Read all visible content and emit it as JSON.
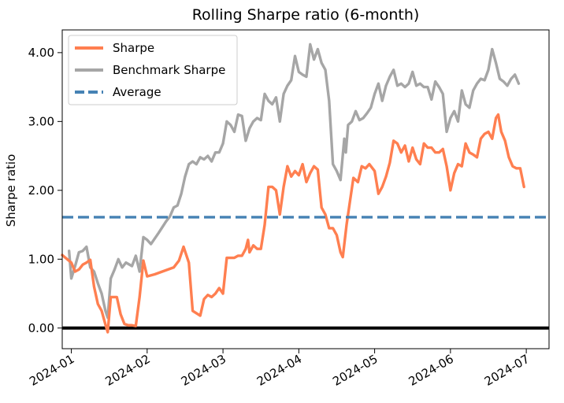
{
  "chart_data": {
    "type": "line",
    "title": "Rolling Sharpe ratio (6-month)",
    "xlabel": "",
    "ylabel": "Sharpe ratio",
    "x_ticks": [
      "2024-01",
      "2024-02",
      "2024-03",
      "2024-04",
      "2024-05",
      "2024-06",
      "2024-07"
    ],
    "y_ticks": [
      "0.00",
      "1.00",
      "2.00",
      "3.00",
      "4.00"
    ],
    "y_tick_values": [
      0,
      1,
      2,
      3,
      4
    ],
    "ylim": [
      -0.3,
      4.33
    ],
    "xlim": [
      -0.12,
      6.3
    ],
    "legend_position": "top-left",
    "series": [
      {
        "name": "Sharpe",
        "color": "#ff7f50",
        "points": [
          [
            -0.12,
            1.06
          ],
          [
            0.0,
            0.95
          ],
          [
            0.05,
            0.82
          ],
          [
            0.1,
            0.85
          ],
          [
            0.15,
            0.92
          ],
          [
            0.2,
            0.95
          ],
          [
            0.25,
            0.99
          ],
          [
            0.3,
            0.6
          ],
          [
            0.35,
            0.35
          ],
          [
            0.4,
            0.25
          ],
          [
            0.45,
            0.05
          ],
          [
            0.48,
            -0.06
          ],
          [
            0.52,
            0.45
          ],
          [
            0.6,
            0.45
          ],
          [
            0.65,
            0.2
          ],
          [
            0.7,
            0.06
          ],
          [
            0.75,
            0.04
          ],
          [
            0.8,
            0.04
          ],
          [
            0.85,
            0.03
          ],
          [
            0.9,
            0.45
          ],
          [
            0.95,
            0.98
          ],
          [
            1.0,
            0.75
          ],
          [
            1.1,
            0.78
          ],
          [
            1.2,
            0.82
          ],
          [
            1.3,
            0.86
          ],
          [
            1.35,
            0.88
          ],
          [
            1.42,
            0.98
          ],
          [
            1.48,
            1.18
          ],
          [
            1.55,
            0.95
          ],
          [
            1.6,
            0.25
          ],
          [
            1.7,
            0.18
          ],
          [
            1.75,
            0.42
          ],
          [
            1.8,
            0.48
          ],
          [
            1.85,
            0.45
          ],
          [
            1.9,
            0.5
          ],
          [
            1.95,
            0.58
          ],
          [
            2.0,
            0.5
          ],
          [
            2.05,
            1.02
          ],
          [
            2.15,
            1.02
          ],
          [
            2.2,
            1.05
          ],
          [
            2.25,
            1.05
          ],
          [
            2.3,
            1.15
          ],
          [
            2.33,
            1.28
          ],
          [
            2.35,
            1.1
          ],
          [
            2.4,
            1.2
          ],
          [
            2.45,
            1.15
          ],
          [
            2.5,
            1.15
          ],
          [
            2.55,
            1.5
          ],
          [
            2.6,
            2.05
          ],
          [
            2.65,
            2.05
          ],
          [
            2.7,
            2.0
          ],
          [
            2.75,
            1.65
          ],
          [
            2.8,
            2.05
          ],
          [
            2.85,
            2.35
          ],
          [
            2.9,
            2.2
          ],
          [
            2.95,
            2.28
          ],
          [
            3.0,
            2.22
          ],
          [
            3.05,
            2.38
          ],
          [
            3.1,
            2.12
          ],
          [
            3.15,
            2.25
          ],
          [
            3.2,
            2.35
          ],
          [
            3.25,
            2.3
          ],
          [
            3.3,
            1.75
          ],
          [
            3.35,
            1.65
          ],
          [
            3.4,
            1.45
          ],
          [
            3.45,
            1.45
          ],
          [
            3.5,
            1.35
          ],
          [
            3.55,
            1.1
          ],
          [
            3.58,
            1.03
          ],
          [
            3.63,
            1.5
          ],
          [
            3.68,
            1.88
          ],
          [
            3.72,
            2.18
          ],
          [
            3.78,
            2.12
          ],
          [
            3.83,
            2.35
          ],
          [
            3.88,
            2.32
          ],
          [
            3.93,
            2.38
          ],
          [
            4.0,
            2.28
          ],
          [
            4.05,
            1.95
          ],
          [
            4.1,
            2.05
          ],
          [
            4.15,
            2.2
          ],
          [
            4.2,
            2.4
          ],
          [
            4.25,
            2.72
          ],
          [
            4.3,
            2.68
          ],
          [
            4.35,
            2.55
          ],
          [
            4.4,
            2.65
          ],
          [
            4.45,
            2.42
          ],
          [
            4.5,
            2.62
          ],
          [
            4.55,
            2.45
          ],
          [
            4.6,
            2.38
          ],
          [
            4.65,
            2.68
          ],
          [
            4.7,
            2.62
          ],
          [
            4.75,
            2.62
          ],
          [
            4.8,
            2.55
          ],
          [
            4.85,
            2.55
          ],
          [
            4.9,
            2.6
          ],
          [
            4.95,
            2.35
          ],
          [
            5.0,
            2.0
          ],
          [
            5.05,
            2.25
          ],
          [
            5.1,
            2.38
          ],
          [
            5.15,
            2.35
          ],
          [
            5.2,
            2.68
          ],
          [
            5.25,
            2.55
          ],
          [
            5.3,
            2.52
          ],
          [
            5.35,
            2.48
          ],
          [
            5.4,
            2.75
          ],
          [
            5.45,
            2.82
          ],
          [
            5.5,
            2.85
          ],
          [
            5.55,
            2.75
          ],
          [
            5.6,
            3.05
          ],
          [
            5.63,
            3.1
          ],
          [
            5.67,
            2.85
          ],
          [
            5.72,
            2.72
          ],
          [
            5.77,
            2.48
          ],
          [
            5.82,
            2.35
          ],
          [
            5.87,
            2.32
          ],
          [
            5.92,
            2.32
          ],
          [
            5.97,
            2.05
          ]
        ]
      },
      {
        "name": "Benchmark Sharpe",
        "color": "#a6a6a6",
        "points": [
          [
            -0.03,
            1.12
          ],
          [
            0.0,
            0.72
          ],
          [
            0.05,
            0.9
          ],
          [
            0.1,
            1.1
          ],
          [
            0.15,
            1.12
          ],
          [
            0.2,
            1.18
          ],
          [
            0.25,
            0.88
          ],
          [
            0.3,
            0.82
          ],
          [
            0.35,
            0.65
          ],
          [
            0.4,
            0.5
          ],
          [
            0.45,
            0.25
          ],
          [
            0.48,
            0.15
          ],
          [
            0.52,
            0.72
          ],
          [
            0.57,
            0.85
          ],
          [
            0.62,
            1.0
          ],
          [
            0.67,
            0.88
          ],
          [
            0.72,
            0.95
          ],
          [
            0.8,
            0.9
          ],
          [
            0.85,
            1.05
          ],
          [
            0.9,
            0.82
          ],
          [
            0.95,
            1.32
          ],
          [
            1.0,
            1.28
          ],
          [
            1.05,
            1.22
          ],
          [
            1.15,
            1.38
          ],
          [
            1.25,
            1.55
          ],
          [
            1.3,
            1.62
          ],
          [
            1.35,
            1.75
          ],
          [
            1.4,
            1.78
          ],
          [
            1.45,
            1.95
          ],
          [
            1.5,
            2.2
          ],
          [
            1.55,
            2.38
          ],
          [
            1.6,
            2.42
          ],
          [
            1.65,
            2.38
          ],
          [
            1.7,
            2.48
          ],
          [
            1.75,
            2.45
          ],
          [
            1.8,
            2.5
          ],
          [
            1.85,
            2.42
          ],
          [
            1.9,
            2.55
          ],
          [
            1.95,
            2.55
          ],
          [
            2.0,
            2.68
          ],
          [
            2.05,
            3.0
          ],
          [
            2.1,
            2.95
          ],
          [
            2.15,
            2.85
          ],
          [
            2.2,
            3.1
          ],
          [
            2.25,
            3.08
          ],
          [
            2.3,
            2.72
          ],
          [
            2.35,
            2.9
          ],
          [
            2.4,
            3.0
          ],
          [
            2.45,
            3.05
          ],
          [
            2.5,
            3.02
          ],
          [
            2.55,
            3.4
          ],
          [
            2.6,
            3.3
          ],
          [
            2.65,
            3.25
          ],
          [
            2.7,
            3.35
          ],
          [
            2.75,
            3.0
          ],
          [
            2.8,
            3.4
          ],
          [
            2.85,
            3.52
          ],
          [
            2.9,
            3.6
          ],
          [
            2.95,
            3.95
          ],
          [
            3.0,
            3.72
          ],
          [
            3.05,
            3.68
          ],
          [
            3.1,
            3.65
          ],
          [
            3.15,
            4.12
          ],
          [
            3.2,
            3.9
          ],
          [
            3.25,
            4.05
          ],
          [
            3.3,
            3.85
          ],
          [
            3.35,
            3.75
          ],
          [
            3.4,
            3.3
          ],
          [
            3.45,
            2.38
          ],
          [
            3.5,
            2.28
          ],
          [
            3.55,
            2.15
          ],
          [
            3.6,
            2.75
          ],
          [
            3.62,
            2.55
          ],
          [
            3.65,
            2.95
          ],
          [
            3.7,
            3.0
          ],
          [
            3.75,
            3.15
          ],
          [
            3.8,
            3.02
          ],
          [
            3.85,
            3.05
          ],
          [
            3.9,
            3.12
          ],
          [
            3.95,
            3.2
          ],
          [
            4.0,
            3.4
          ],
          [
            4.05,
            3.55
          ],
          [
            4.1,
            3.3
          ],
          [
            4.15,
            3.52
          ],
          [
            4.2,
            3.65
          ],
          [
            4.25,
            3.75
          ],
          [
            4.3,
            3.52
          ],
          [
            4.35,
            3.55
          ],
          [
            4.4,
            3.5
          ],
          [
            4.45,
            3.55
          ],
          [
            4.5,
            3.72
          ],
          [
            4.55,
            3.52
          ],
          [
            4.6,
            3.55
          ],
          [
            4.65,
            3.5
          ],
          [
            4.7,
            3.5
          ],
          [
            4.75,
            3.32
          ],
          [
            4.8,
            3.58
          ],
          [
            4.85,
            3.5
          ],
          [
            4.9,
            3.4
          ],
          [
            4.95,
            2.85
          ],
          [
            5.0,
            3.05
          ],
          [
            5.05,
            3.15
          ],
          [
            5.1,
            3.0
          ],
          [
            5.15,
            3.45
          ],
          [
            5.2,
            3.25
          ],
          [
            5.25,
            3.2
          ],
          [
            5.3,
            3.45
          ],
          [
            5.35,
            3.55
          ],
          [
            5.4,
            3.62
          ],
          [
            5.45,
            3.6
          ],
          [
            5.5,
            3.75
          ],
          [
            5.55,
            4.05
          ],
          [
            5.6,
            3.85
          ],
          [
            5.65,
            3.62
          ],
          [
            5.7,
            3.58
          ],
          [
            5.75,
            3.52
          ],
          [
            5.8,
            3.62
          ],
          [
            5.85,
            3.68
          ],
          [
            5.9,
            3.55
          ]
        ]
      },
      {
        "name": "Average",
        "color": "#4682b4",
        "style": "dashed",
        "constant": 1.61
      }
    ],
    "zero_line": 0
  }
}
